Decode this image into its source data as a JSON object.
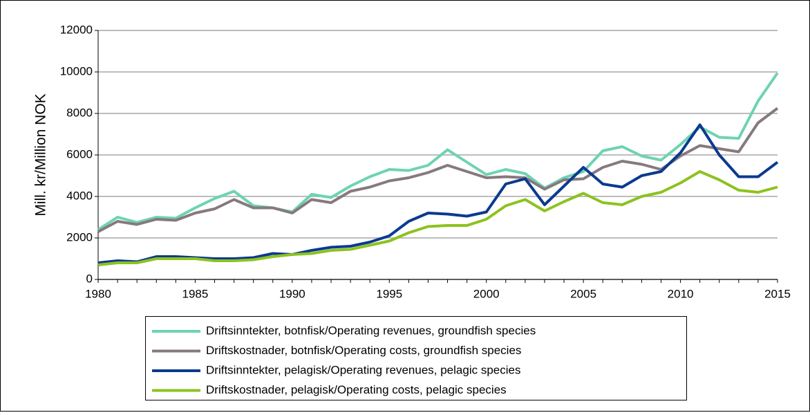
{
  "chart_data": {
    "type": "line",
    "y_label": "Mill. kr/Million NOK",
    "x": [
      1980,
      1981,
      1982,
      1983,
      1984,
      1985,
      1986,
      1987,
      1988,
      1989,
      1990,
      1991,
      1992,
      1993,
      1994,
      1995,
      1996,
      1997,
      1998,
      1999,
      2000,
      2001,
      2002,
      2003,
      2004,
      2005,
      2006,
      2007,
      2008,
      2009,
      2010,
      2011,
      2012,
      2013,
      2014,
      2015
    ],
    "xlim": [
      1980,
      2015
    ],
    "xticks": [
      1980,
      1985,
      1990,
      1995,
      2000,
      2005,
      2010,
      2015
    ],
    "ylim": [
      0,
      12000
    ],
    "yticks": [
      0,
      2000,
      4000,
      6000,
      8000,
      10000,
      12000
    ],
    "grid": true,
    "legend": "bottom",
    "series": [
      {
        "name": "Driftsinntekter, botnfisk/Operating revenues, groundfish species",
        "color": "#6dd3b3",
        "values": [
          2400,
          3000,
          2750,
          3000,
          2950,
          3450,
          3900,
          4250,
          3550,
          3450,
          3250,
          4100,
          3950,
          4500,
          4950,
          5300,
          5250,
          5500,
          6250,
          5650,
          5050,
          5300,
          5100,
          4400,
          4900,
          5200,
          6200,
          6400,
          5950,
          5750,
          6500,
          7350,
          6850,
          6800,
          8600,
          9950
        ]
      },
      {
        "name": "Driftskostnader, botnfisk/Operating costs, groundfish species",
        "color": "#86797f",
        "values": [
          2300,
          2800,
          2650,
          2900,
          2850,
          3200,
          3400,
          3850,
          3450,
          3450,
          3200,
          3850,
          3700,
          4250,
          4450,
          4750,
          4900,
          5150,
          5500,
          5200,
          4900,
          4950,
          4900,
          4350,
          4800,
          4850,
          5400,
          5700,
          5550,
          5300,
          5950,
          6450,
          6300,
          6150,
          7550,
          8250
        ]
      },
      {
        "name": "Driftsinntekter, pelagisk/Operating revenues, pelagic species",
        "color": "#0b3a8f",
        "values": [
          800,
          900,
          850,
          1100,
          1100,
          1050,
          1000,
          1000,
          1050,
          1250,
          1200,
          1400,
          1550,
          1600,
          1800,
          2100,
          2800,
          3200,
          3150,
          3050,
          3250,
          4600,
          4850,
          3600,
          4500,
          5400,
          4600,
          4450,
          5000,
          5200,
          6100,
          7450,
          6000,
          4950,
          4950,
          5650
        ]
      },
      {
        "name": "Driftskostnader, pelagisk/Operating costs, pelagic species",
        "color": "#8dc21f",
        "values": [
          700,
          800,
          800,
          1000,
          1000,
          1000,
          900,
          900,
          950,
          1100,
          1200,
          1250,
          1400,
          1450,
          1650,
          1850,
          2250,
          2550,
          2600,
          2600,
          2900,
          3550,
          3850,
          3300,
          3750,
          4150,
          3700,
          3600,
          4000,
          4200,
          4650,
          5200,
          4800,
          4300,
          4200,
          4450
        ]
      }
    ]
  }
}
